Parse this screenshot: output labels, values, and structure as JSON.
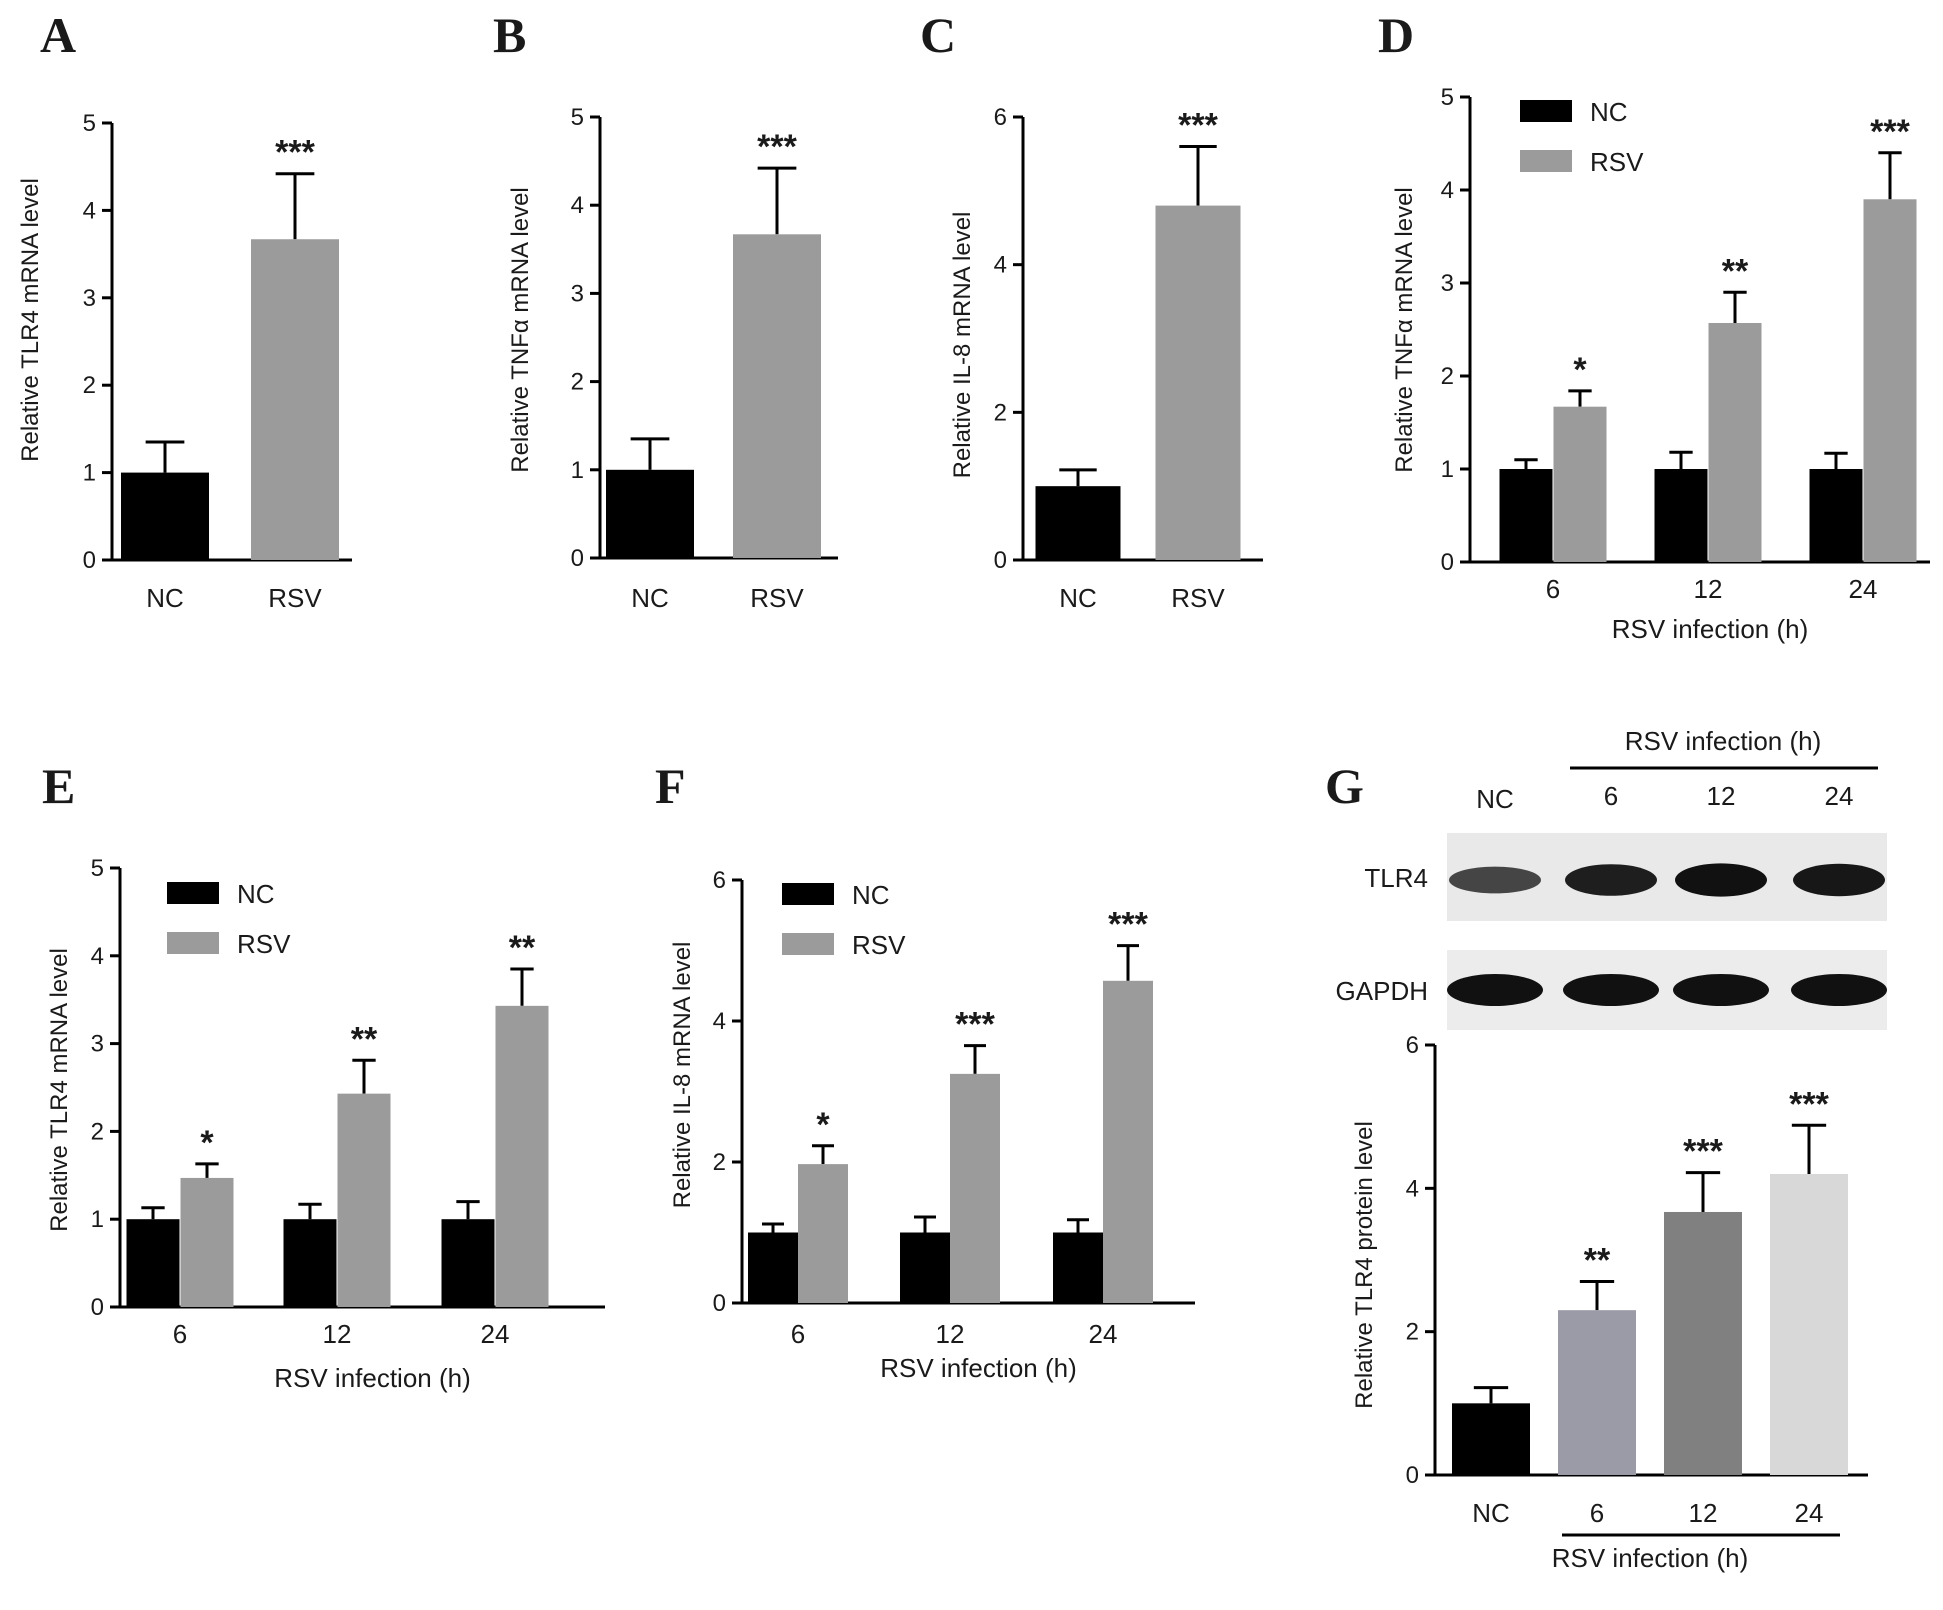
{
  "chart_data": [
    {
      "panel": "A",
      "type": "bar",
      "categories": [
        "NC",
        "RSV"
      ],
      "values": [
        1.0,
        3.67
      ],
      "errors": [
        0.35,
        0.75
      ],
      "significance": [
        "",
        "***"
      ],
      "colors": [
        "#000000",
        "#9b9b9b"
      ],
      "ylabel": "Relative TLR4 mRNA level",
      "xlabel": "",
      "ylim": [
        0,
        5
      ],
      "yticks": [
        "0",
        "1",
        "2",
        "3",
        "4",
        "5"
      ]
    },
    {
      "panel": "B",
      "type": "bar",
      "categories": [
        "NC",
        "RSV"
      ],
      "values": [
        1.0,
        3.67
      ],
      "errors": [
        0.35,
        0.75
      ],
      "significance": [
        "",
        "***"
      ],
      "colors": [
        "#000000",
        "#9b9b9b"
      ],
      "ylabel": "Relative TNFα mRNA level",
      "xlabel": "",
      "ylim": [
        0,
        5
      ],
      "yticks": [
        "0",
        "1",
        "2",
        "3",
        "4",
        "5"
      ]
    },
    {
      "panel": "C",
      "type": "bar",
      "categories": [
        "NC",
        "RSV"
      ],
      "values": [
        1.0,
        4.8
      ],
      "errors": [
        0.22,
        0.8
      ],
      "significance": [
        "",
        "***"
      ],
      "colors": [
        "#000000",
        "#9b9b9b"
      ],
      "ylabel": "Relative IL-8 mRNA level",
      "xlabel": "",
      "ylim": [
        0,
        6
      ],
      "yticks": [
        "0",
        "2",
        "4",
        "6"
      ]
    },
    {
      "panel": "D",
      "type": "bar",
      "categories": [
        "6",
        "12",
        "24"
      ],
      "series": [
        {
          "name": "NC",
          "values": [
            1.0,
            1.0,
            1.0
          ],
          "errors": [
            0.1,
            0.18,
            0.17
          ],
          "color": "#000000",
          "significance": [
            "",
            "",
            ""
          ]
        },
        {
          "name": "RSV",
          "values": [
            1.67,
            2.57,
            3.9
          ],
          "errors": [
            0.17,
            0.33,
            0.5
          ],
          "color": "#9b9b9b",
          "significance": [
            "*",
            "**",
            "***"
          ]
        }
      ],
      "ylabel": "Relative TNFα mRNA level",
      "xlabel": "RSV infection (h)",
      "ylim": [
        0,
        5
      ],
      "yticks": [
        "0",
        "1",
        "2",
        "3",
        "4",
        "5"
      ],
      "legend": "top-left"
    },
    {
      "panel": "E",
      "type": "bar",
      "categories": [
        "6",
        "12",
        "24"
      ],
      "series": [
        {
          "name": "NC",
          "values": [
            1.0,
            1.0,
            1.0
          ],
          "errors": [
            0.13,
            0.17,
            0.2
          ],
          "color": "#000000",
          "significance": [
            "",
            "",
            ""
          ]
        },
        {
          "name": "RSV",
          "values": [
            1.47,
            2.43,
            3.43
          ],
          "errors": [
            0.16,
            0.38,
            0.42
          ],
          "color": "#9b9b9b",
          "significance": [
            "*",
            "**",
            "**"
          ]
        }
      ],
      "ylabel": "Relative TLR4 mRNA level",
      "xlabel": "RSV infection (h)",
      "ylim": [
        0,
        5
      ],
      "yticks": [
        "0",
        "1",
        "2",
        "3",
        "4",
        "5"
      ],
      "legend": "top-left"
    },
    {
      "panel": "F",
      "type": "bar",
      "categories": [
        "6",
        "12",
        "24"
      ],
      "series": [
        {
          "name": "NC",
          "values": [
            1.0,
            1.0,
            1.0
          ],
          "errors": [
            0.12,
            0.22,
            0.18
          ],
          "color": "#000000",
          "significance": [
            "",
            "",
            ""
          ]
        },
        {
          "name": "RSV",
          "values": [
            1.97,
            3.25,
            4.57
          ],
          "errors": [
            0.26,
            0.4,
            0.5
          ],
          "color": "#9b9b9b",
          "significance": [
            "*",
            "***",
            "***"
          ]
        }
      ],
      "ylabel": "Relative IL-8 mRNA level",
      "xlabel": "RSV infection (h)",
      "ylim": [
        0,
        6
      ],
      "yticks": [
        "0",
        "2",
        "4",
        "6"
      ],
      "legend": "top-left"
    },
    {
      "panel": "G",
      "type": "bar",
      "categories": [
        "NC",
        "6",
        "12",
        "24"
      ],
      "values": [
        1.0,
        2.3,
        3.67,
        4.2
      ],
      "errors": [
        0.22,
        0.4,
        0.55,
        0.68
      ],
      "significance": [
        "",
        "**",
        "***",
        "***"
      ],
      "colors": [
        "#000000",
        "#9b9ba8",
        "#808080",
        "#d8d8d8"
      ],
      "ylabel": "Relative TLR4 protein level",
      "xlabel": "RSV infection (h)",
      "ylim": [
        0,
        6
      ],
      "yticks": [
        "0",
        "2",
        "4",
        "6"
      ]
    }
  ],
  "blot": {
    "header": "RSV infection (h)",
    "lanes": [
      "NC",
      "6",
      "12",
      "24"
    ],
    "rows": [
      "TLR4",
      "GAPDH"
    ],
    "tlr4_intensity": [
      0.55,
      0.85,
      0.95,
      0.9
    ],
    "gapdh_intensity": [
      0.95,
      0.95,
      0.95,
      0.95
    ]
  }
}
